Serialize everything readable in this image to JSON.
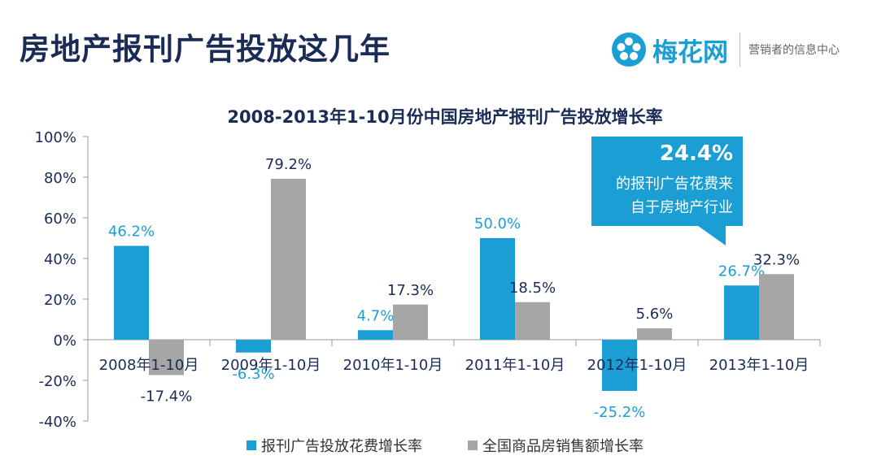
{
  "header": {
    "title": "房地产报刊广告投放这几年",
    "logo_name": "梅花网",
    "logo_tagline": "营销者的信息中心"
  },
  "callout": {
    "value": "24.4%",
    "line1": "的报刊广告花费来",
    "line2": "自于房地产行业"
  },
  "colors": {
    "series1": "#1b9ed3",
    "series2": "#a6a6a6",
    "title": "#1a2b56"
  },
  "chart_data": {
    "type": "bar",
    "title": "2008-2013年1-10月份中国房地产报刊广告投放增长率",
    "categories": [
      "2008年1-10月",
      "2009年1-10月",
      "2010年1-10月",
      "2011年1-10月",
      "2012年1-10月",
      "2013年1-10月"
    ],
    "series": [
      {
        "name": "报刊广告投放花费增长率",
        "values": [
          46.2,
          -6.3,
          4.7,
          50.0,
          -25.2,
          26.7
        ],
        "labels": [
          "46.2%",
          "-6.3%",
          "4.7%",
          "50.0%",
          "-25.2%",
          "26.7%"
        ]
      },
      {
        "name": "全国商品房销售额增长率",
        "values": [
          -17.4,
          79.2,
          17.3,
          18.5,
          5.6,
          32.3
        ],
        "labels": [
          "-17.4%",
          "79.2%",
          "17.3%",
          "18.5%",
          "5.6%",
          "32.3%"
        ]
      }
    ],
    "ylim": [
      -40,
      100
    ],
    "yticks": [
      "100%",
      "80%",
      "60%",
      "40%",
      "20%",
      "0%",
      "-20%",
      "-40%"
    ],
    "legend_position": "bottom",
    "grid": false
  }
}
